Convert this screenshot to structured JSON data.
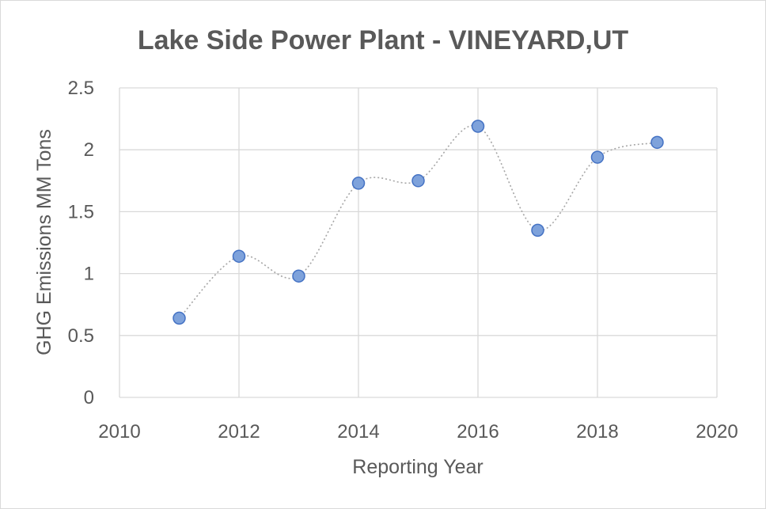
{
  "chart_data": {
    "type": "scatter",
    "title": "Lake Side Power Plant - VINEYARD,UT",
    "xlabel": "Reporting Year",
    "ylabel": "GHG Emissions MM Tons",
    "xlim": [
      2010,
      2020
    ],
    "ylim": [
      0,
      2.5
    ],
    "x_ticks": [
      "2010",
      "2012",
      "2014",
      "2016",
      "2018",
      "2020"
    ],
    "y_ticks": [
      "0",
      "0.5",
      "1",
      "1.5",
      "2",
      "2.5"
    ],
    "grid": true,
    "line_style": "dotted smooth",
    "series": [
      {
        "x": [
          2011,
          2012,
          2013,
          2014,
          2015,
          2016,
          2017,
          2018,
          2019
        ],
        "y": [
          0.64,
          1.14,
          0.98,
          1.73,
          1.75,
          2.19,
          1.35,
          1.94,
          2.06
        ],
        "color": "#7ea2db",
        "stroke": "#4472c4"
      }
    ]
  }
}
